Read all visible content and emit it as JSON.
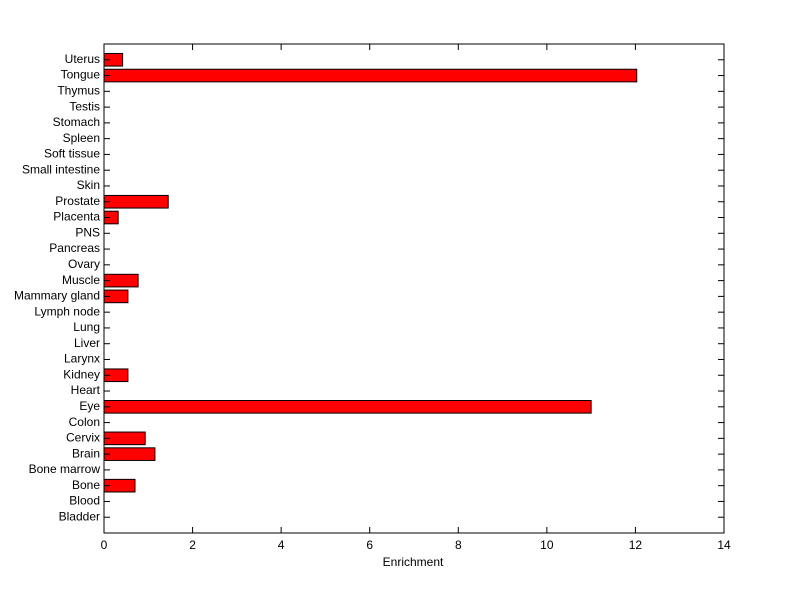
{
  "chart_data": {
    "type": "barh",
    "categories": [
      "Bladder",
      "Blood",
      "Bone",
      "Bone marrow",
      "Brain",
      "Cervix",
      "Colon",
      "Eye",
      "Heart",
      "Kidney",
      "Larynx",
      "Liver",
      "Lung",
      "Lymph node",
      "Mammary gland",
      "Muscle",
      "Ovary",
      "Pancreas",
      "PNS",
      "Placenta",
      "Prostate",
      "Skin",
      "Small intestine",
      "Soft tissue",
      "Spleen",
      "Stomach",
      "Testis",
      "Thymus",
      "Tongue",
      "Uterus"
    ],
    "values": [
      0,
      0,
      0.7,
      0,
      1.15,
      0.93,
      0,
      11.0,
      0,
      0.54,
      0,
      0,
      0,
      0,
      0.54,
      0.77,
      0,
      0,
      0,
      0.32,
      1.45,
      0,
      0,
      0,
      0,
      0,
      0,
      0,
      12.03,
      0.42
    ],
    "color": "#ff0000",
    "xlabel": "Enrichment",
    "xlim": [
      0,
      14
    ],
    "xticks": [
      0,
      2,
      4,
      6,
      8,
      10,
      12,
      14
    ]
  }
}
